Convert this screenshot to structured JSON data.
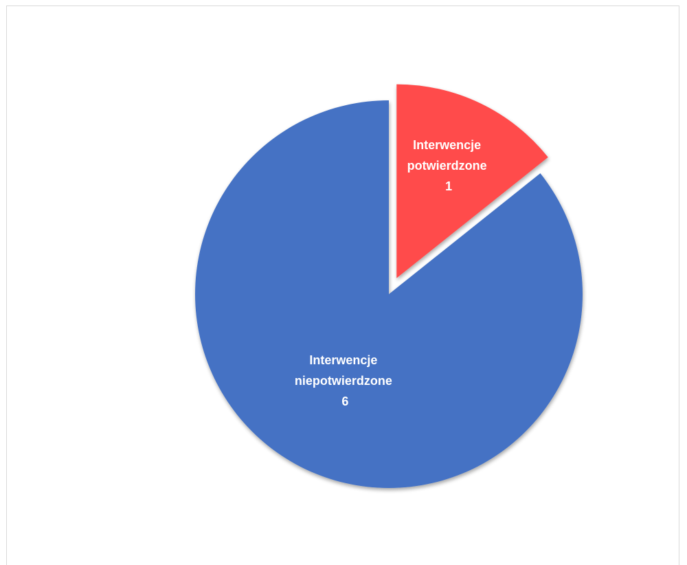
{
  "chart_data": {
    "type": "pie",
    "title": "",
    "slices": [
      {
        "label_line1": "Interwencje",
        "label_line2": "potwierdzone",
        "value": 1,
        "value_text": "1",
        "color": "#FF4B4B",
        "exploded": true
      },
      {
        "label_line1": "Interwencje",
        "label_line2": "niepotwierdzone",
        "value": 6,
        "value_text": "6",
        "color": "#4472C4",
        "exploded": false
      }
    ],
    "legend": "none"
  }
}
